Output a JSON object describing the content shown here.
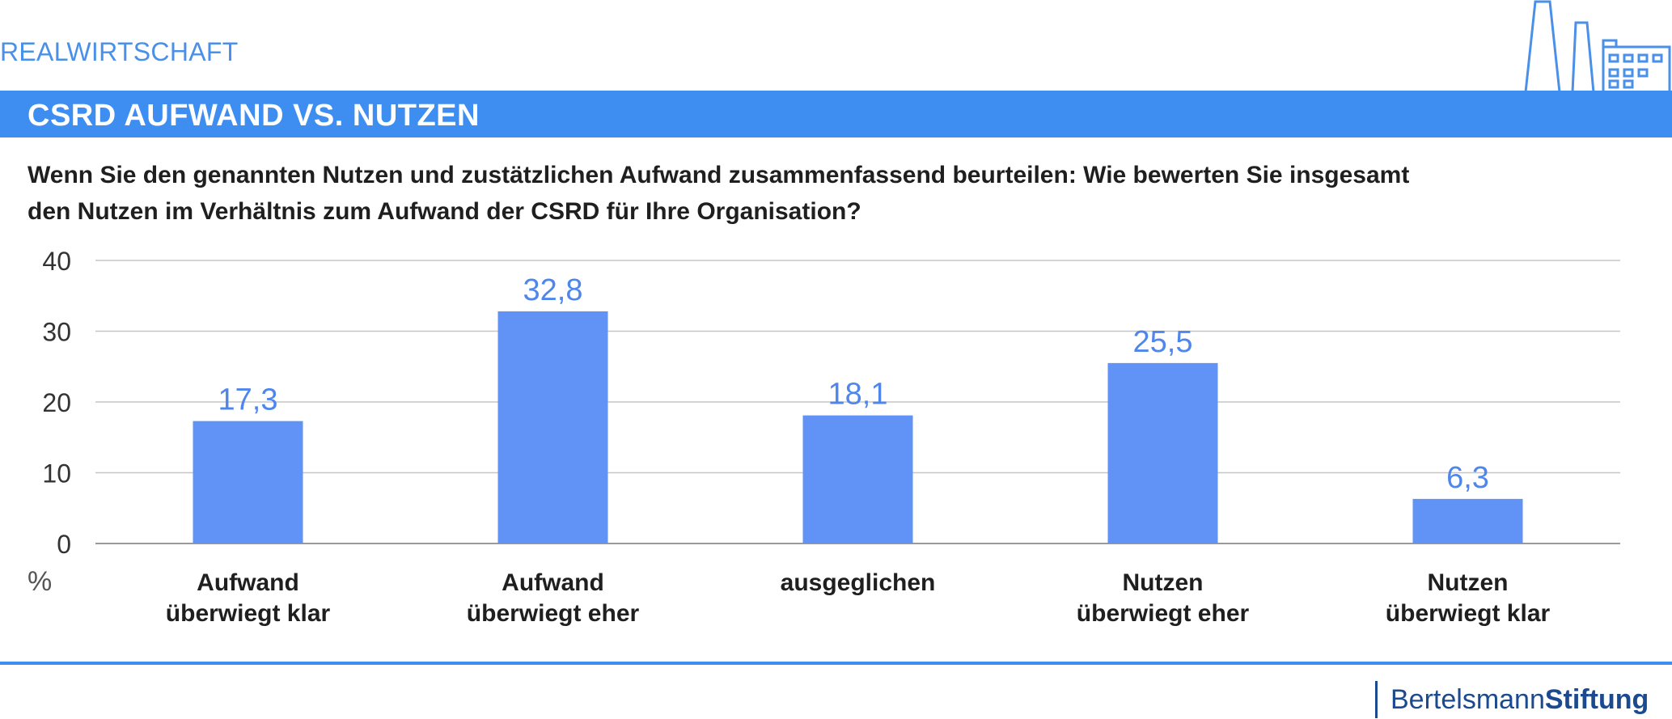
{
  "header": {
    "section_label": "REALWIRTSCHAFT",
    "title": "CSRD AUFWAND VS. NUTZEN"
  },
  "question": {
    "line1": "Wenn Sie den genannten Nutzen und zustätzlichen Aufwand zusammenfassend beurteilen: Wie bewerten Sie insgesamt",
    "line2": "den Nutzen im Verhältnis zum Aufwand der CSRD für Ihre Organisation?"
  },
  "brand": {
    "part1": "Bertelsmann",
    "part2": "Stiftung"
  },
  "colors": {
    "accent": "#3d8ef0",
    "bar": "#6192f5",
    "value_label": "#4f86ec",
    "brand": "#1c4a8e"
  },
  "icons": {
    "logo": "factory-skyline-icon"
  },
  "chart_data": {
    "type": "bar",
    "categories": [
      [
        "Aufwand",
        "überwiegt klar"
      ],
      [
        "Aufwand",
        "überwiegt eher"
      ],
      [
        "ausgeglichen"
      ],
      [
        "Nutzen",
        "überwiegt eher"
      ],
      [
        "Nutzen",
        "überwiegt klar"
      ]
    ],
    "values": [
      17.3,
      32.8,
      18.1,
      25.5,
      6.3
    ],
    "value_labels": [
      "17,3",
      "32,8",
      "18,1",
      "25,5",
      "6,3"
    ],
    "yticks": [
      0,
      10,
      20,
      30,
      40
    ],
    "ylim": [
      0,
      40
    ],
    "unit": "%",
    "grid": true
  }
}
